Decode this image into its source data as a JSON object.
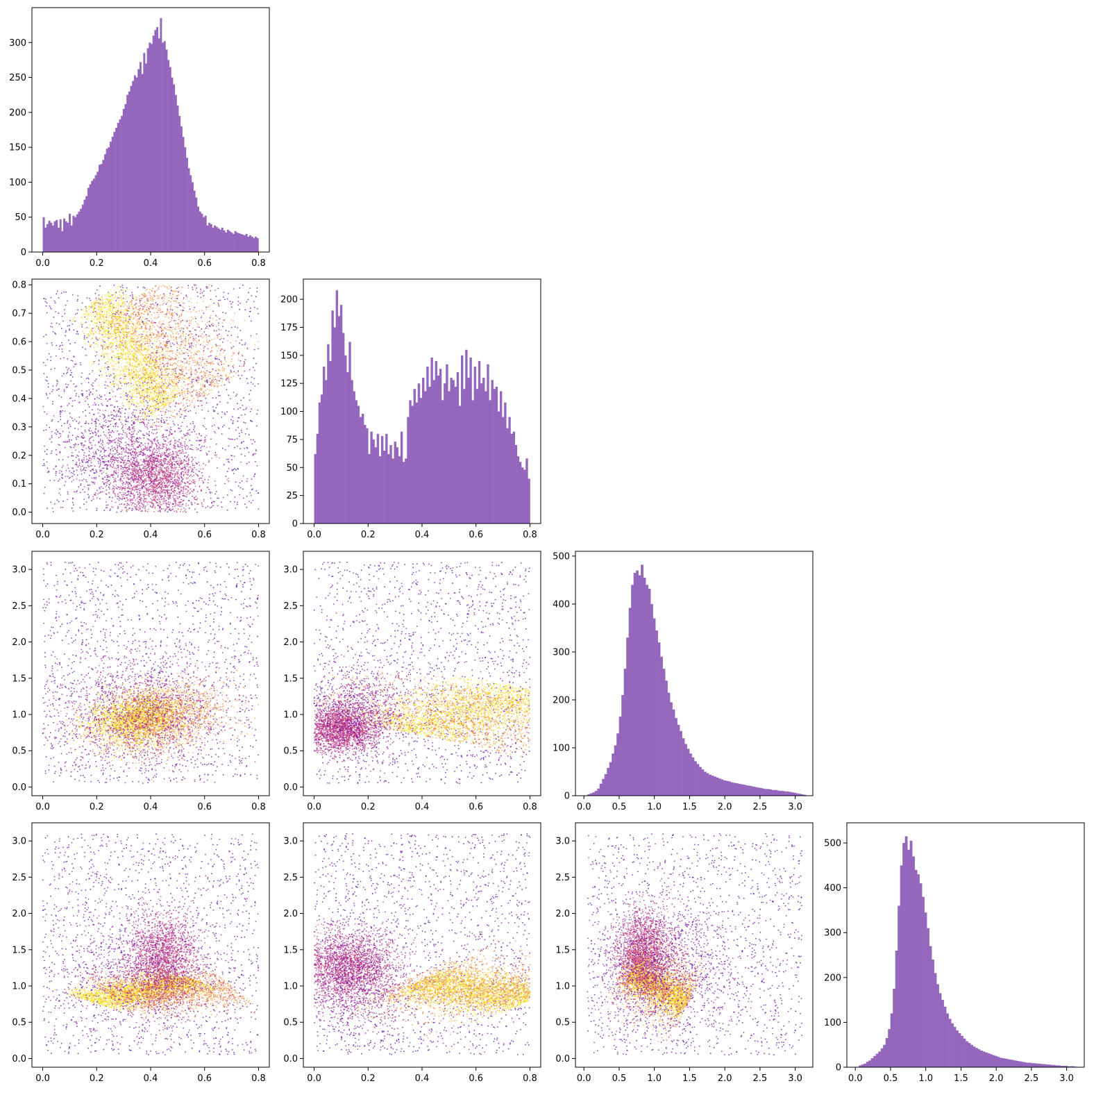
{
  "style": {
    "hist_color": "#9467bd",
    "scatter_colormap": "plasma",
    "scatter_stops": [
      "#0d0887",
      "#6a00a8",
      "#b12a90",
      "#e16462",
      "#fca636",
      "#f0f921"
    ]
  },
  "chart_data": [
    {
      "type": "bar",
      "panel": "hist-1",
      "row": 0,
      "col": 0,
      "xlim": [
        -0.04,
        0.84
      ],
      "ylim": [
        0,
        350
      ],
      "xticks": [
        0.0,
        0.2,
        0.4,
        0.6,
        0.8
      ],
      "xtick_labels": [
        "0.0",
        "0.2",
        "0.4",
        "0.6",
        "0.8"
      ],
      "yticks": [
        0,
        50,
        100,
        150,
        200,
        250,
        300
      ],
      "ytick_labels": [
        "0",
        "50",
        "100",
        "150",
        "200",
        "250",
        "300"
      ],
      "bin_range": [
        0.0,
        0.8
      ],
      "values": [
        50,
        35,
        40,
        45,
        42,
        38,
        44,
        46,
        35,
        47,
        30,
        48,
        44,
        42,
        55,
        38,
        52,
        50,
        54,
        58,
        62,
        68,
        75,
        80,
        92,
        97,
        102,
        105,
        110,
        115,
        125,
        126,
        132,
        140,
        148,
        150,
        158,
        165,
        172,
        178,
        185,
        190,
        195,
        205,
        212,
        225,
        230,
        238,
        245,
        253,
        250,
        262,
        272,
        255,
        285,
        270,
        292,
        300,
        298,
        310,
        318,
        322,
        306,
        335,
        300,
        302,
        290,
        275,
        265,
        250,
        240,
        225,
        210,
        195,
        180,
        165,
        150,
        135,
        120,
        110,
        100,
        88,
        78,
        65,
        58,
        55,
        50,
        52,
        38,
        42,
        40,
        35,
        38,
        36,
        34,
        32,
        35,
        31,
        28,
        32,
        30,
        28,
        26,
        30,
        28,
        27,
        26,
        25,
        24,
        26,
        22,
        24,
        22,
        20,
        22,
        20
      ]
    },
    {
      "type": "bar",
      "panel": "hist-2",
      "row": 1,
      "col": 1,
      "xlim": [
        -0.04,
        0.84
      ],
      "ylim": [
        0,
        218
      ],
      "xticks": [
        0.0,
        0.2,
        0.4,
        0.6,
        0.8
      ],
      "xtick_labels": [
        "0.0",
        "0.2",
        "0.4",
        "0.6",
        "0.8"
      ],
      "yticks": [
        0,
        25,
        50,
        75,
        100,
        125,
        150,
        175,
        200
      ],
      "ytick_labels": [
        "0",
        "25",
        "50",
        "75",
        "100",
        "125",
        "150",
        "175",
        "200"
      ],
      "bin_range": [
        0.0,
        0.8
      ],
      "values": [
        62,
        80,
        108,
        115,
        140,
        128,
        160,
        145,
        190,
        175,
        208,
        185,
        195,
        170,
        150,
        135,
        162,
        128,
        118,
        110,
        105,
        95,
        98,
        88,
        85,
        62,
        82,
        75,
        68,
        80,
        60,
        78,
        65,
        80,
        62,
        70,
        58,
        73,
        68,
        60,
        82,
        55,
        58,
        95,
        110,
        105,
        120,
        108,
        125,
        112,
        130,
        118,
        140,
        122,
        148,
        128,
        145,
        132,
        138,
        110,
        125,
        142,
        118,
        130,
        128,
        122,
        135,
        105,
        150,
        120,
        155,
        130,
        148,
        110,
        140,
        120,
        145,
        125,
        130,
        118,
        142,
        110,
        128,
        120,
        122,
        100,
        118,
        95,
        108,
        85,
        95,
        80,
        82,
        70,
        60,
        55,
        50,
        48,
        58,
        40
      ]
    },
    {
      "type": "bar",
      "panel": "hist-3",
      "row": 2,
      "col": 2,
      "xlim": [
        -0.12,
        3.25
      ],
      "ylim": [
        0,
        510
      ],
      "xticks": [
        0.0,
        0.5,
        1.0,
        1.5,
        2.0,
        2.5,
        3.0
      ],
      "xtick_labels": [
        "0.0",
        "0.5",
        "1.0",
        "1.5",
        "2.0",
        "2.5",
        "3.0"
      ],
      "yticks": [
        0,
        100,
        200,
        300,
        400,
        500
      ],
      "ytick_labels": [
        "0",
        "100",
        "200",
        "300",
        "400",
        "500"
      ],
      "bin_range": [
        0.05,
        3.15
      ],
      "values": [
        3,
        5,
        7,
        10,
        15,
        25,
        35,
        45,
        58,
        70,
        88,
        105,
        130,
        165,
        210,
        265,
        330,
        392,
        440,
        465,
        470,
        460,
        482,
        455,
        440,
        432,
        400,
        370,
        345,
        320,
        290,
        265,
        240,
        215,
        195,
        180,
        162,
        148,
        135,
        120,
        108,
        98,
        88,
        80,
        72,
        66,
        60,
        55,
        50,
        47,
        44,
        42,
        40,
        38,
        36,
        34,
        32,
        31,
        30,
        28,
        27,
        26,
        25,
        24,
        23,
        22,
        21,
        20,
        19,
        18,
        17,
        16,
        15,
        14,
        14,
        13,
        12,
        12,
        11,
        10,
        10,
        9,
        9,
        8,
        7,
        6,
        5,
        4,
        3,
        2
      ]
    },
    {
      "type": "bar",
      "panel": "hist-4",
      "row": 3,
      "col": 3,
      "xlim": [
        -0.12,
        3.25
      ],
      "ylim": [
        0,
        545
      ],
      "xticks": [
        0.0,
        0.5,
        1.0,
        1.5,
        2.0,
        2.5,
        3.0
      ],
      "xtick_labels": [
        "0.0",
        "0.5",
        "1.0",
        "1.5",
        "2.0",
        "2.5",
        "3.0"
      ],
      "yticks": [
        0,
        100,
        200,
        300,
        400,
        500
      ],
      "ytick_labels": [
        "0",
        "100",
        "200",
        "300",
        "400",
        "500"
      ],
      "bin_range": [
        0.05,
        3.15
      ],
      "values": [
        4,
        6,
        8,
        12,
        15,
        20,
        25,
        30,
        35,
        42,
        50,
        65,
        85,
        120,
        175,
        260,
        360,
        450,
        500,
        515,
        485,
        505,
        470,
        440,
        430,
        410,
        380,
        345,
        310,
        270,
        240,
        210,
        185,
        165,
        150,
        135,
        120,
        108,
        98,
        90,
        82,
        76,
        70,
        64,
        58,
        54,
        50,
        46,
        43,
        40,
        37,
        35,
        33,
        31,
        29,
        27,
        25,
        23,
        21,
        20,
        19,
        18,
        17,
        16,
        15,
        14,
        13,
        12,
        11,
        10,
        10,
        9,
        9,
        8,
        8,
        7,
        7,
        6,
        6,
        5,
        5,
        4,
        4,
        3,
        3,
        3,
        2,
        2,
        2,
        1
      ]
    },
    {
      "type": "scatter",
      "panel": "scatter-2-1",
      "row": 1,
      "col": 0,
      "xlim": [
        -0.04,
        0.84
      ],
      "ylim": [
        -0.04,
        0.82
      ],
      "xticks": [
        0.0,
        0.2,
        0.4,
        0.6,
        0.8
      ],
      "xtick_labels": [
        "0.0",
        "0.2",
        "0.4",
        "0.6",
        "0.8"
      ],
      "yticks": [
        0.0,
        0.1,
        0.2,
        0.3,
        0.4,
        0.5,
        0.6,
        0.7,
        0.8
      ],
      "ytick_labels": [
        "0.0",
        "0.1",
        "0.2",
        "0.3",
        "0.4",
        "0.5",
        "0.6",
        "0.7",
        "0.8"
      ],
      "bounds": {
        "x": [
          0.0,
          0.8
        ],
        "y": [
          0.0,
          0.8
        ]
      },
      "clusters": [
        {
          "n": 1600,
          "kind": "uniform",
          "color": 0.18
        },
        {
          "n": 2000,
          "kind": "band",
          "x0": 0.2,
          "y0": 0.75,
          "x1": 0.45,
          "y1": 0.37,
          "width": 0.05,
          "color": 0.93
        },
        {
          "n": 1500,
          "kind": "band",
          "x0": 0.35,
          "y0": 0.76,
          "x1": 0.6,
          "y1": 0.4,
          "width": 0.1,
          "color": 0.72
        },
        {
          "n": 1800,
          "kind": "gauss",
          "cx": 0.42,
          "cy": 0.12,
          "sx": 0.08,
          "sy": 0.07,
          "rho": 0.0,
          "color": 0.45
        },
        {
          "n": 900,
          "kind": "gauss",
          "cx": 0.3,
          "cy": 0.22,
          "sx": 0.12,
          "sy": 0.1,
          "rho": 0.0,
          "color": 0.3
        }
      ]
    },
    {
      "type": "scatter",
      "panel": "scatter-3-1",
      "row": 2,
      "col": 0,
      "xlim": [
        -0.04,
        0.84
      ],
      "ylim": [
        -0.12,
        3.25
      ],
      "xticks": [
        0.0,
        0.2,
        0.4,
        0.6,
        0.8
      ],
      "xtick_labels": [
        "0.0",
        "0.2",
        "0.4",
        "0.6",
        "0.8"
      ],
      "yticks": [
        0.0,
        0.5,
        1.0,
        1.5,
        2.0,
        2.5,
        3.0
      ],
      "ytick_labels": [
        "0.0",
        "0.5",
        "1.0",
        "1.5",
        "2.0",
        "2.5",
        "3.0"
      ],
      "bounds": {
        "x": [
          0.0,
          0.8
        ],
        "y": [
          0.05,
          3.1
        ]
      },
      "clusters": [
        {
          "n": 1400,
          "kind": "uniform",
          "color": 0.18
        },
        {
          "n": 2200,
          "kind": "gauss",
          "cx": 0.35,
          "cy": 0.95,
          "sx": 0.09,
          "sy": 0.18,
          "rho": 0.2,
          "color": 0.93
        },
        {
          "n": 1600,
          "kind": "gauss",
          "cx": 0.45,
          "cy": 0.95,
          "sx": 0.12,
          "sy": 0.25,
          "rho": 0.3,
          "color": 0.72
        },
        {
          "n": 1400,
          "kind": "gauss",
          "cx": 0.35,
          "cy": 1.05,
          "sx": 0.15,
          "sy": 0.4,
          "rho": 0.0,
          "color": 0.35
        }
      ]
    },
    {
      "type": "scatter",
      "panel": "scatter-3-2",
      "row": 2,
      "col": 1,
      "xlim": [
        -0.04,
        0.84
      ],
      "ylim": [
        -0.12,
        3.25
      ],
      "xticks": [
        0.0,
        0.2,
        0.4,
        0.6,
        0.8
      ],
      "xtick_labels": [
        "0.0",
        "0.2",
        "0.4",
        "0.6",
        "0.8"
      ],
      "yticks": [
        0.0,
        0.5,
        1.0,
        1.5,
        2.0,
        2.5,
        3.0
      ],
      "ytick_labels": [
        "0.0",
        "0.5",
        "1.0",
        "1.5",
        "2.0",
        "2.5",
        "3.0"
      ],
      "bounds": {
        "x": [
          0.0,
          0.8
        ],
        "y": [
          0.05,
          3.1
        ]
      },
      "clusters": [
        {
          "n": 1500,
          "kind": "uniform",
          "color": 0.18
        },
        {
          "n": 2000,
          "kind": "band",
          "x0": 0.35,
          "y0": 0.75,
          "x1": 0.8,
          "y1": 1.35,
          "width": 0.15,
          "color": 0.93
        },
        {
          "n": 1500,
          "kind": "band",
          "x0": 0.4,
          "y0": 0.7,
          "x1": 0.8,
          "y1": 1.2,
          "width": 0.35,
          "color": 0.72
        },
        {
          "n": 2000,
          "kind": "gauss",
          "cx": 0.1,
          "cy": 0.8,
          "sx": 0.07,
          "sy": 0.15,
          "rho": 0.0,
          "color": 0.45
        },
        {
          "n": 900,
          "kind": "gauss",
          "cx": 0.15,
          "cy": 1.05,
          "sx": 0.1,
          "sy": 0.3,
          "rho": 0.0,
          "color": 0.3
        }
      ]
    },
    {
      "type": "scatter",
      "panel": "scatter-4-1",
      "row": 3,
      "col": 0,
      "xlim": [
        -0.04,
        0.84
      ],
      "ylim": [
        -0.12,
        3.25
      ],
      "xticks": [
        0.0,
        0.2,
        0.4,
        0.6,
        0.8
      ],
      "xtick_labels": [
        "0.0",
        "0.2",
        "0.4",
        "0.6",
        "0.8"
      ],
      "yticks": [
        0.0,
        0.5,
        1.0,
        1.5,
        2.0,
        2.5,
        3.0
      ],
      "ytick_labels": [
        "0.0",
        "0.5",
        "1.0",
        "1.5",
        "2.0",
        "2.5",
        "3.0"
      ],
      "bounds": {
        "x": [
          0.0,
          0.8
        ],
        "y": [
          0.05,
          3.1
        ]
      },
      "clusters": [
        {
          "n": 1400,
          "kind": "uniform",
          "color": 0.18
        },
        {
          "n": 2200,
          "kind": "band",
          "x0": 0.18,
          "y0": 0.78,
          "x1": 0.55,
          "y1": 1.1,
          "width": 0.08,
          "color": 0.93
        },
        {
          "n": 1500,
          "kind": "band",
          "x0": 0.25,
          "y0": 0.85,
          "x1": 0.7,
          "y1": 1.0,
          "width": 0.15,
          "color": 0.72
        },
        {
          "n": 1800,
          "kind": "gauss",
          "cx": 0.45,
          "cy": 1.35,
          "sx": 0.06,
          "sy": 0.3,
          "rho": 0.0,
          "color": 0.45
        },
        {
          "n": 900,
          "kind": "gauss",
          "cx": 0.35,
          "cy": 1.2,
          "sx": 0.15,
          "sy": 0.4,
          "rho": 0.0,
          "color": 0.3
        }
      ]
    },
    {
      "type": "scatter",
      "panel": "scatter-4-2",
      "row": 3,
      "col": 1,
      "xlim": [
        -0.04,
        0.84
      ],
      "ylim": [
        -0.12,
        3.25
      ],
      "xticks": [
        0.0,
        0.2,
        0.4,
        0.6,
        0.8
      ],
      "xtick_labels": [
        "0.0",
        "0.2",
        "0.4",
        "0.6",
        "0.8"
      ],
      "yticks": [
        0.0,
        0.5,
        1.0,
        1.5,
        2.0,
        2.5,
        3.0
      ],
      "ytick_labels": [
        "0.0",
        "0.5",
        "1.0",
        "1.5",
        "2.0",
        "2.5",
        "3.0"
      ],
      "bounds": {
        "x": [
          0.0,
          0.8
        ],
        "y": [
          0.05,
          3.1
        ]
      },
      "clusters": [
        {
          "n": 1500,
          "kind": "uniform",
          "color": 0.18
        },
        {
          "n": 2000,
          "kind": "band",
          "x0": 0.38,
          "y0": 1.05,
          "x1": 0.8,
          "y1": 0.8,
          "width": 0.12,
          "color": 0.93
        },
        {
          "n": 1500,
          "kind": "band",
          "x0": 0.35,
          "y0": 1.1,
          "x1": 0.8,
          "y1": 0.85,
          "width": 0.22,
          "color": 0.72
        },
        {
          "n": 2000,
          "kind": "gauss",
          "cx": 0.12,
          "cy": 1.25,
          "sx": 0.09,
          "sy": 0.25,
          "rho": 0.0,
          "color": 0.45
        },
        {
          "n": 900,
          "kind": "gauss",
          "cx": 0.15,
          "cy": 1.1,
          "sx": 0.1,
          "sy": 0.4,
          "rho": 0.0,
          "color": 0.3
        }
      ]
    },
    {
      "type": "scatter",
      "panel": "scatter-4-3",
      "row": 3,
      "col": 2,
      "xlim": [
        -0.12,
        3.25
      ],
      "ylim": [
        -0.12,
        3.25
      ],
      "xticks": [
        0.0,
        0.5,
        1.0,
        1.5,
        2.0,
        2.5,
        3.0
      ],
      "xtick_labels": [
        "0.0",
        "0.5",
        "1.0",
        "1.5",
        "2.0",
        "2.5",
        "3.0"
      ],
      "yticks": [
        0.0,
        0.5,
        1.0,
        1.5,
        2.0,
        2.5,
        3.0
      ],
      "ytick_labels": [
        "0.0",
        "0.5",
        "1.0",
        "1.5",
        "2.0",
        "2.5",
        "3.0"
      ],
      "bounds": {
        "x": [
          0.05,
          3.1
        ],
        "y": [
          0.05,
          3.1
        ]
      },
      "clusters": [
        {
          "n": 1300,
          "kind": "uniform",
          "color": 0.18
        },
        {
          "n": 1800,
          "kind": "band",
          "x0": 0.65,
          "y0": 1.2,
          "x1": 1.45,
          "y1": 0.75,
          "width": 0.12,
          "color": 0.93
        },
        {
          "n": 1400,
          "kind": "band",
          "x0": 0.55,
          "y0": 1.3,
          "x1": 1.5,
          "y1": 0.8,
          "width": 0.25,
          "color": 0.72
        },
        {
          "n": 1800,
          "kind": "gauss",
          "cx": 0.85,
          "cy": 1.45,
          "sx": 0.2,
          "sy": 0.3,
          "rho": 0.0,
          "color": 0.45
        },
        {
          "n": 1200,
          "kind": "gauss",
          "cx": 1.2,
          "cy": 1.2,
          "sx": 0.5,
          "sy": 0.45,
          "rho": 0.0,
          "color": 0.25
        }
      ]
    }
  ]
}
